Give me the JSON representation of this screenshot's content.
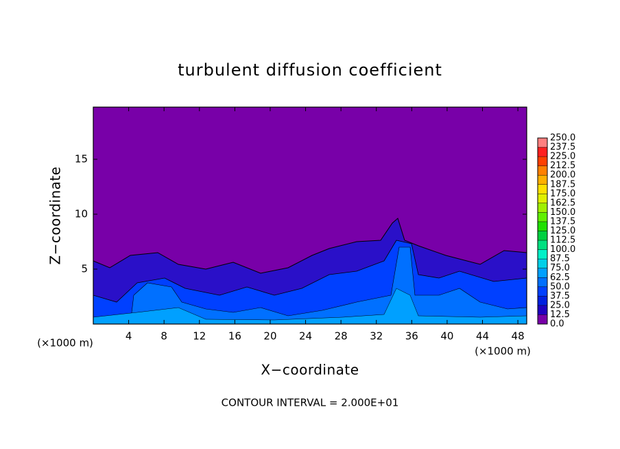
{
  "chart_data": {
    "type": "contour",
    "title": "turbulent diffusion coefficient",
    "x_label": "X−coordinate",
    "y_label": "Z−coordinate",
    "x_unit": "(×1000 m)",
    "y_unit": "(×1000 m)",
    "annotation": "CONTOUR INTERVAL = 2.000E+01",
    "xlim": [
      0,
      49
    ],
    "xticks": [
      4,
      8,
      12,
      16,
      20,
      24,
      28,
      32,
      36,
      40,
      44,
      48
    ],
    "ylim": [
      0,
      19.75
    ],
    "yticks": [
      5,
      10,
      15
    ],
    "colorbar": {
      "clim": [
        0,
        250
      ],
      "levels": [
        {
          "value": 0,
          "label": "0.0"
        },
        {
          "value": 12.5,
          "label": "12.5"
        },
        {
          "value": 25,
          "label": "25.0"
        },
        {
          "value": 37.5,
          "label": "37.5"
        },
        {
          "value": 50,
          "label": "50.0"
        },
        {
          "value": 62.5,
          "label": "62.5"
        },
        {
          "value": 75,
          "label": "75.0"
        },
        {
          "value": 87.5,
          "label": "87.5"
        },
        {
          "value": 100,
          "label": "100.0"
        },
        {
          "value": 112.5,
          "label": "112.5"
        },
        {
          "value": 125,
          "label": "125.0"
        },
        {
          "value": 137.5,
          "label": "137.5"
        },
        {
          "value": 150,
          "label": "150.0"
        },
        {
          "value": 162.5,
          "label": "162.5"
        },
        {
          "value": 175,
          "label": "175.0"
        },
        {
          "value": 187.5,
          "label": "187.5"
        },
        {
          "value": 200,
          "label": "200.0"
        },
        {
          "value": 212.5,
          "label": "212.5"
        },
        {
          "value": 225,
          "label": "225.0"
        },
        {
          "value": 237.5,
          "label": "237.5"
        },
        {
          "value": 250,
          "label": "250.0"
        }
      ],
      "colors": [
        "#7800a8",
        "#2000c0",
        "#0020e0",
        "#0040ff",
        "#0070ff",
        "#00a0ff",
        "#00d0e8",
        "#00f0c8",
        "#00e080",
        "#00d040",
        "#20e000",
        "#60f000",
        "#a0f000",
        "#e0f000",
        "#ffe000",
        "#ffb000",
        "#ff8000",
        "#ff4000",
        "#ff2020",
        "#ff8080"
      ]
    }
  }
}
